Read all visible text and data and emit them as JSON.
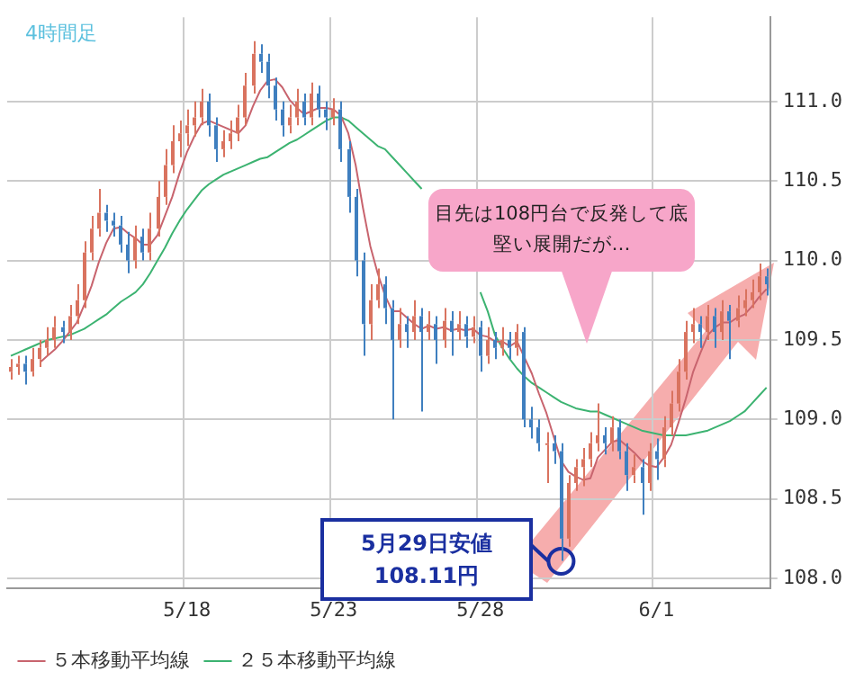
{
  "chart_data": {
    "type": "candlestick",
    "subtitle": "4時間足",
    "categories": [
      null,
      null,
      null,
      null,
      null,
      null,
      null,
      null,
      null,
      null,
      null,
      null,
      null,
      null,
      null,
      null,
      null,
      null,
      null,
      null,
      null,
      null,
      null,
      null,
      "5/18",
      null,
      null,
      null,
      null,
      null,
      null,
      null,
      null,
      null,
      null,
      null,
      null,
      null,
      null,
      null,
      null,
      null,
      null,
      null,
      "5/23",
      null,
      null,
      null,
      null,
      null,
      null,
      null,
      null,
      null,
      null,
      null,
      null,
      null,
      null,
      null,
      null,
      null,
      null,
      null,
      "5/28",
      null,
      null,
      null,
      null,
      null,
      null,
      null,
      null,
      null,
      null,
      null,
      null,
      null,
      null,
      null,
      null,
      null,
      null,
      null,
      null,
      null,
      null,
      null,
      "6/1",
      null,
      null,
      null,
      null,
      null,
      null,
      null,
      null,
      null,
      null,
      null,
      null,
      null,
      null,
      null
    ],
    "ohlc": [
      [
        109.3,
        109.38,
        109.25,
        109.33
      ],
      [
        109.33,
        109.4,
        109.28,
        109.35
      ],
      [
        109.35,
        109.4,
        109.22,
        109.3
      ],
      [
        109.3,
        109.45,
        109.27,
        109.38
      ],
      [
        109.38,
        109.5,
        109.33,
        109.45
      ],
      [
        109.45,
        109.58,
        109.4,
        109.5
      ],
      [
        109.5,
        109.65,
        109.45,
        109.58
      ],
      [
        109.58,
        109.62,
        109.48,
        109.55
      ],
      [
        109.55,
        109.72,
        109.5,
        109.65
      ],
      [
        109.65,
        109.85,
        109.6,
        109.75
      ],
      [
        109.75,
        110.12,
        109.7,
        110.05
      ],
      [
        110.05,
        110.28,
        110.0,
        110.2
      ],
      [
        110.2,
        110.45,
        110.15,
        110.3
      ],
      [
        110.3,
        110.35,
        110.18,
        110.25
      ],
      [
        110.25,
        110.3,
        110.15,
        110.22
      ],
      [
        110.22,
        110.28,
        110.05,
        110.1
      ],
      [
        110.1,
        110.18,
        109.92,
        110.0
      ],
      [
        110.0,
        110.22,
        109.95,
        110.15
      ],
      [
        110.15,
        110.2,
        110.0,
        110.05
      ],
      [
        110.05,
        110.3,
        110.0,
        110.2
      ],
      [
        110.2,
        110.5,
        110.15,
        110.4
      ],
      [
        110.4,
        110.7,
        110.35,
        110.6
      ],
      [
        110.6,
        110.85,
        110.55,
        110.75
      ],
      [
        110.75,
        110.88,
        110.65,
        110.8
      ],
      [
        110.8,
        110.95,
        110.72,
        110.85
      ],
      [
        110.85,
        111.0,
        110.78,
        110.9
      ],
      [
        110.9,
        111.08,
        110.85,
        111.0
      ],
      [
        111.0,
        111.05,
        110.78,
        110.85
      ],
      [
        110.85,
        110.9,
        110.62,
        110.7
      ],
      [
        110.7,
        110.82,
        110.65,
        110.75
      ],
      [
        110.75,
        110.88,
        110.7,
        110.8
      ],
      [
        110.8,
        110.98,
        110.75,
        110.9
      ],
      [
        110.9,
        111.18,
        110.85,
        111.1
      ],
      [
        111.1,
        111.38,
        111.05,
        111.3
      ],
      [
        111.3,
        111.36,
        111.18,
        111.25
      ],
      [
        111.25,
        111.3,
        111.02,
        111.1
      ],
      [
        111.1,
        111.15,
        110.88,
        110.95
      ],
      [
        110.95,
        111.0,
        110.78,
        110.85
      ],
      [
        110.85,
        110.98,
        110.8,
        110.9
      ],
      [
        110.9,
        111.08,
        110.85,
        111.0
      ],
      [
        111.0,
        111.05,
        110.85,
        110.9
      ],
      [
        110.9,
        111.12,
        110.85,
        111.05
      ],
      [
        111.05,
        111.1,
        110.9,
        110.95
      ],
      [
        110.95,
        111.0,
        110.82,
        110.9
      ],
      [
        110.9,
        111.02,
        110.85,
        110.95
      ],
      [
        110.95,
        111.0,
        110.62,
        110.7
      ],
      [
        110.7,
        110.75,
        110.3,
        110.4
      ],
      [
        110.4,
        110.45,
        109.9,
        110.0
      ],
      [
        110.0,
        110.05,
        109.4,
        109.6
      ],
      [
        109.6,
        109.85,
        109.5,
        109.75
      ],
      [
        109.75,
        109.95,
        109.7,
        109.85
      ],
      [
        109.85,
        109.9,
        109.6,
        109.7
      ],
      [
        109.7,
        109.75,
        109.0,
        109.5
      ],
      [
        109.5,
        109.7,
        109.45,
        109.6
      ],
      [
        109.6,
        109.65,
        109.45,
        109.55
      ],
      [
        109.55,
        109.75,
        109.5,
        109.65
      ],
      [
        109.65,
        109.7,
        109.05,
        109.55
      ],
      [
        109.55,
        109.68,
        109.5,
        109.6
      ],
      [
        109.6,
        109.65,
        109.35,
        109.5
      ],
      [
        109.5,
        109.7,
        109.45,
        109.62
      ],
      [
        109.62,
        109.68,
        109.4,
        109.55
      ],
      [
        109.55,
        109.68,
        109.5,
        109.6
      ],
      [
        109.6,
        109.65,
        109.45,
        109.52
      ],
      [
        109.52,
        109.65,
        109.48,
        109.58
      ],
      [
        109.58,
        109.62,
        109.3,
        109.4
      ],
      [
        109.4,
        109.58,
        109.35,
        109.5
      ],
      [
        109.5,
        109.55,
        109.38,
        109.45
      ],
      [
        109.45,
        109.58,
        109.4,
        109.5
      ],
      [
        109.5,
        109.55,
        109.38,
        109.45
      ],
      [
        109.45,
        109.6,
        109.4,
        109.55
      ],
      [
        109.55,
        109.58,
        108.95,
        109.0
      ],
      [
        109.0,
        109.08,
        108.88,
        108.95
      ],
      [
        108.95,
        109.0,
        108.8,
        108.85
      ],
      [
        108.85,
        108.92,
        108.6,
        108.85
      ],
      [
        108.85,
        108.9,
        108.72,
        108.8
      ],
      [
        108.8,
        108.85,
        108.11,
        108.25
      ],
      [
        108.25,
        108.65,
        108.2,
        108.6
      ],
      [
        108.6,
        108.75,
        108.55,
        108.7
      ],
      [
        108.7,
        108.82,
        108.58,
        108.75
      ],
      [
        108.75,
        108.92,
        108.7,
        108.85
      ],
      [
        108.85,
        109.1,
        108.8,
        108.9
      ],
      [
        108.9,
        108.95,
        108.78,
        108.85
      ],
      [
        108.85,
        109.02,
        108.8,
        108.95
      ],
      [
        108.95,
        109.0,
        108.75,
        108.8
      ],
      [
        108.8,
        108.85,
        108.55,
        108.65
      ],
      [
        108.65,
        108.78,
        108.6,
        108.7
      ],
      [
        108.7,
        108.75,
        108.4,
        108.6
      ],
      [
        108.6,
        108.85,
        108.55,
        108.8
      ],
      [
        108.8,
        108.88,
        108.62,
        108.75
      ],
      [
        108.75,
        109.02,
        108.7,
        108.95
      ],
      [
        108.95,
        109.18,
        108.9,
        109.1
      ],
      [
        109.1,
        109.38,
        109.05,
        109.3
      ],
      [
        109.3,
        109.62,
        109.25,
        109.55
      ],
      [
        109.55,
        109.7,
        109.48,
        109.6
      ],
      [
        109.6,
        109.65,
        109.45,
        109.55
      ],
      [
        109.55,
        109.72,
        109.5,
        109.65
      ],
      [
        109.65,
        109.7,
        109.45,
        109.55
      ],
      [
        109.55,
        109.75,
        109.5,
        109.68
      ],
      [
        109.68,
        109.72,
        109.38,
        109.62
      ],
      [
        109.62,
        109.78,
        109.58,
        109.7
      ],
      [
        109.7,
        109.82,
        109.65,
        109.75
      ],
      [
        109.75,
        109.88,
        109.7,
        109.8
      ],
      [
        109.8,
        109.98,
        109.75,
        109.9
      ],
      [
        109.9,
        109.95,
        109.78,
        109.85
      ]
    ],
    "series": [
      {
        "name": "５本移動平均線",
        "type": "line",
        "color": "#c8646e",
        "values": [
          null,
          null,
          null,
          null,
          109.36,
          109.4,
          109.44,
          109.49,
          109.55,
          109.61,
          109.72,
          109.84,
          109.99,
          110.11,
          110.2,
          110.21,
          110.17,
          110.14,
          110.1,
          110.1,
          110.16,
          110.28,
          110.4,
          110.55,
          110.68,
          110.78,
          110.86,
          110.88,
          110.86,
          110.84,
          110.82,
          110.8,
          110.85,
          110.97,
          111.07,
          111.13,
          111.14,
          111.09,
          111.01,
          110.96,
          110.92,
          110.94,
          110.96,
          110.96,
          110.95,
          110.91,
          110.8,
          110.6,
          110.33,
          110.09,
          109.92,
          109.78,
          109.68,
          109.68,
          109.64,
          109.6,
          109.57,
          109.59,
          109.57,
          109.58,
          109.56,
          109.57,
          109.56,
          109.57,
          109.53,
          109.52,
          109.49,
          109.49,
          109.46,
          109.49,
          109.39,
          109.29,
          109.16,
          109.04,
          108.89,
          108.74,
          108.67,
          108.64,
          108.62,
          108.63,
          108.76,
          108.81,
          108.86,
          108.87,
          108.83,
          108.79,
          108.74,
          108.71,
          108.7,
          108.76,
          108.84,
          108.98,
          109.13,
          109.3,
          109.42,
          109.53,
          109.58,
          109.61,
          109.61,
          109.64,
          109.66,
          109.71,
          109.77,
          109.82
        ]
      },
      {
        "name": "２５本移動平均線",
        "type": "line",
        "color": "#3cb371",
        "values": [
          109.4,
          109.42,
          109.44,
          109.46,
          109.48,
          109.5,
          109.51,
          109.52,
          109.53,
          109.55,
          109.57,
          109.6,
          109.63,
          109.66,
          109.7,
          109.74,
          109.77,
          109.8,
          109.85,
          109.92,
          110.0,
          110.08,
          110.17,
          110.25,
          110.32,
          110.38,
          110.44,
          110.48,
          110.51,
          110.54,
          110.56,
          110.58,
          110.6,
          110.62,
          110.64,
          110.65,
          110.68,
          110.71,
          110.74,
          110.76,
          110.79,
          110.82,
          110.85,
          110.88,
          110.9,
          110.9,
          110.88,
          110.84,
          110.8,
          110.76,
          110.72,
          110.7,
          110.65,
          110.6,
          110.55,
          110.5,
          110.45,
          null,
          null,
          null,
          null,
          null,
          null,
          null,
          109.8,
          109.68,
          109.53,
          109.45,
          109.38,
          109.32,
          109.27,
          109.23,
          109.2,
          109.17,
          109.14,
          109.11,
          109.09,
          109.07,
          109.06,
          109.05,
          109.05,
          109.03,
          109.01,
          108.99,
          108.97,
          108.95,
          108.93,
          108.92,
          108.91,
          108.9,
          108.9,
          108.9,
          108.9,
          108.91,
          108.92,
          108.93,
          108.95,
          108.97,
          108.99,
          109.02,
          109.05,
          109.1,
          109.15,
          109.2
        ]
      }
    ],
    "ylim": [
      107.94,
      111.53
    ],
    "yticks": [
      {
        "value": 108,
        "label": "108.0"
      },
      {
        "value": 108.5,
        "label": "108.5"
      },
      {
        "value": 109,
        "label": "109.0"
      },
      {
        "value": 109.5,
        "label": "109.5"
      },
      {
        "value": 110,
        "label": "110.0"
      },
      {
        "value": 110.5,
        "label": "110.5"
      },
      {
        "value": 111,
        "label": "111.0"
      }
    ],
    "grid": true,
    "legend": "bottom",
    "annotations": [
      "目先は108円台で反発して底堅い展開だが…",
      "5月29日安値\n108.11円"
    ]
  }
}
